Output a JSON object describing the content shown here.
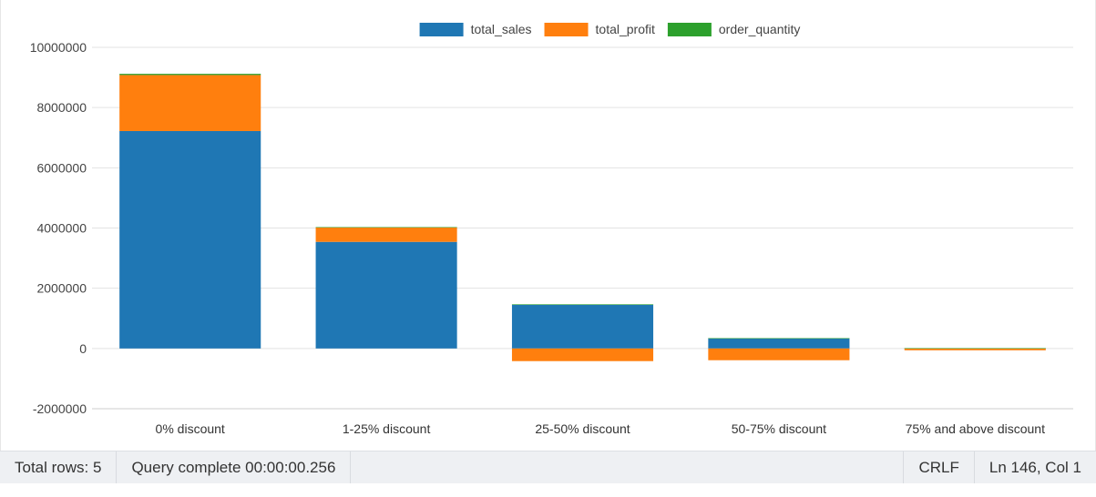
{
  "chart_data": {
    "type": "bar",
    "stacked": true,
    "categories": [
      "0% discount",
      "1-25% discount",
      "25-50% discount",
      "50-75% discount",
      "75% and above discount"
    ],
    "series": [
      {
        "name": "total_sales",
        "color": "#1f77b4",
        "values": [
          7220000,
          3540000,
          1460000,
          340000,
          10000
        ]
      },
      {
        "name": "total_profit",
        "color": "#ff7f0e",
        "values": [
          1860000,
          480000,
          -420000,
          -390000,
          -60000
        ]
      },
      {
        "name": "order_quantity",
        "color": "#2ca02c",
        "values": [
          40000,
          10000,
          5000,
          2000,
          500
        ]
      }
    ],
    "ylim": [
      -2000000,
      10000000
    ],
    "yticks": [
      "10000000",
      "8000000",
      "6000000",
      "4000000",
      "2000000",
      "0",
      "-2000000"
    ],
    "grid": true,
    "legend_position": "top-center"
  },
  "status_bar": {
    "total_rows": "Total rows: 5",
    "query_status": "Query complete 00:00:00.256",
    "line_ending": "CRLF",
    "cursor_position": "Ln 146, Col 1"
  }
}
